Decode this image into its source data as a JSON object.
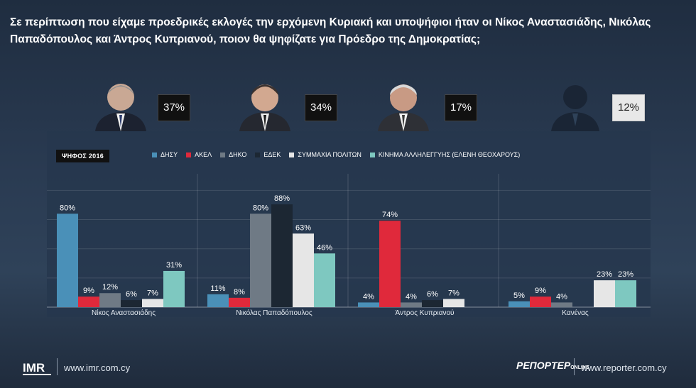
{
  "question": "Σε περίπτωση που είχαμε προεδρικές εκλογές την ερχόμενη Κυριακή και υποψήφιοι ήταν οι Νίκος Αναστασιάδης, Νικόλας Παπαδόπουλος και Άντρος Κυπριανού, ποιον θα ψηφίζατε για Πρόεδρο της Δημοκρατίας;",
  "candidates": [
    {
      "pct": "37%"
    },
    {
      "pct": "34%"
    },
    {
      "pct": "17%"
    },
    {
      "pct": "12%"
    }
  ],
  "vote_tag": "ΨΗΦΟΣ 2016",
  "colors": {
    "ΔΗΣΥ": "#4a90b8",
    "ΑΚΕΛ": "#e0293b",
    "ΔΗΚΟ": "#6f7a85",
    "ΕΔΕΚ": "#1c2733",
    "ΣΥΜΜΑΧΙΑ ΠΟΛΙΤΩΝ": "#e6e6e6",
    "ΚΙΝΗΜΑ ΑΛΛΗΛΕΓΓΥΗΣ": "#7ec8c0"
  },
  "chart_data": {
    "type": "bar",
    "title": "",
    "xlabel": "",
    "ylabel": "",
    "ylim": [
      0,
      100
    ],
    "categories": [
      "Νίκος Αναστασιάδης",
      "Νικόλας Παπαδόπουλος",
      "Άντρος Κυπριανού",
      "Κανένας"
    ],
    "legend_position": "top",
    "series": [
      {
        "name": "ΔΗΣΥ",
        "values": [
          80,
          11,
          4,
          5
        ],
        "labels": [
          "80%",
          "11%",
          "4%",
          "5%"
        ]
      },
      {
        "name": "ΑΚΕΛ",
        "values": [
          9,
          8,
          74,
          9
        ],
        "labels": [
          "9%",
          "8%",
          "74%",
          "9%"
        ]
      },
      {
        "name": "ΔΗΚΟ",
        "values": [
          12,
          80,
          4,
          4
        ],
        "labels": [
          "12%",
          "80%",
          "4%",
          "4%"
        ]
      },
      {
        "name": "ΕΔΕΚ",
        "values": [
          6,
          88,
          6,
          0
        ],
        "labels": [
          "6%",
          "88%",
          "6%",
          ""
        ]
      },
      {
        "name": "ΣΥΜΜΑΧΙΑ ΠΟΛΙΤΩΝ",
        "values": [
          7,
          63,
          7,
          23
        ],
        "labels": [
          "7%",
          "63%",
          "7%",
          "23%"
        ]
      },
      {
        "name": "ΚΙΝΗΜΑ ΑΛΛΗΛΕΓΓΥΗΣ (ΕΛΕΝΗ ΘΕΟΧΑΡΟΥΣ)",
        "values": [
          31,
          46,
          0,
          23
        ],
        "labels": [
          "31%",
          "46%",
          "",
          "23%"
        ]
      }
    ]
  },
  "footer": {
    "imr_url": "www.imr.com.cy",
    "imr_logo_text": "IMR",
    "reporter_logo": "ΡΕΠΟΡΤΕΡ",
    "reporter_logo_sub": "ONLINE",
    "reporter_url": "www.reporter.com.cy"
  }
}
